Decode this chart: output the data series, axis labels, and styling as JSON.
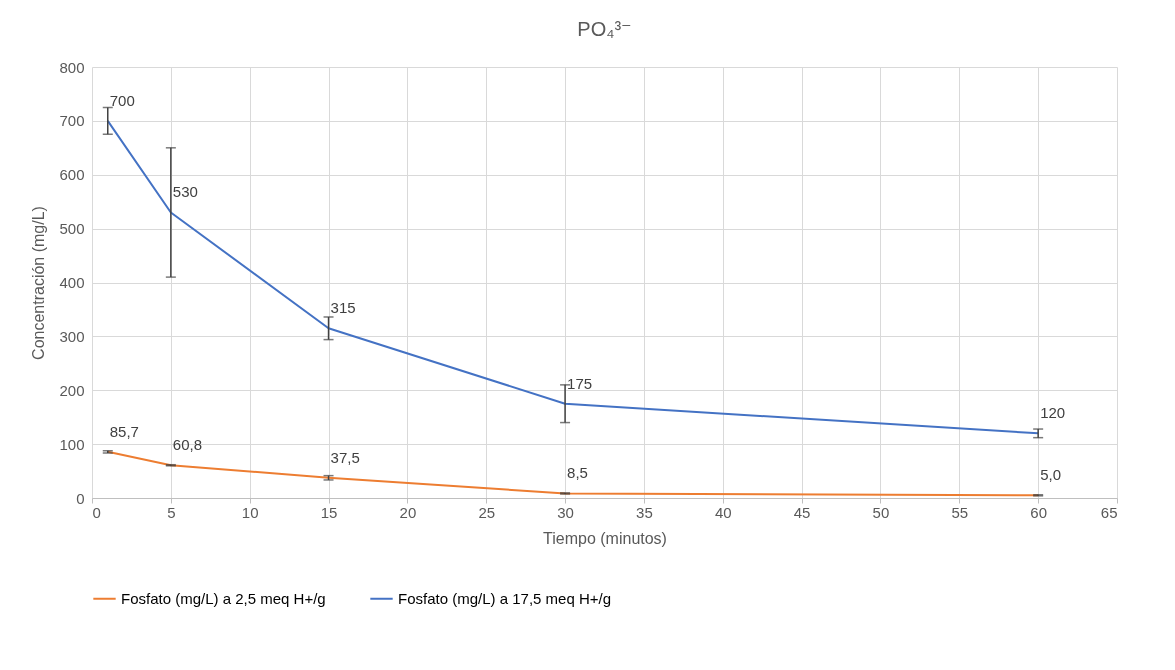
{
  "chart_data": {
    "type": "line",
    "title": "PO₄³⁻",
    "xlabel": "Tiempo (minutos)",
    "ylabel": "Concentración (mg/L)",
    "x": [
      1,
      5,
      15,
      30,
      60
    ],
    "series": [
      {
        "name": "Fosfato (mg/L) a 2,5 meq H+/g",
        "color": "#ed7d31",
        "values": [
          85.7,
          60.8,
          37.5,
          8.5,
          5.0
        ],
        "errors": [
          2,
          1,
          4,
          1,
          1
        ],
        "value_labels": [
          "85,7",
          "60,8",
          "37,5",
          "8,5",
          "5,0"
        ]
      },
      {
        "name": "Fosfato (mg/L) a 17,5 meq H+/g",
        "color": "#4472c4",
        "values": [
          700,
          530,
          315,
          175,
          120
        ],
        "errors": [
          25,
          120,
          21,
          35,
          8
        ],
        "value_labels": [
          "700",
          "530",
          "315",
          "175",
          "120"
        ]
      }
    ],
    "xlim": [
      0,
      65
    ],
    "xticks": [
      0,
      5,
      10,
      15,
      20,
      25,
      30,
      35,
      40,
      45,
      50,
      55,
      60,
      65
    ],
    "ylim": [
      0,
      800
    ],
    "yticks": [
      0,
      100,
      200,
      300,
      400,
      500,
      600,
      700,
      800
    ],
    "grid": true,
    "legend": "bottom",
    "marker": "none",
    "line_style": "solid"
  }
}
